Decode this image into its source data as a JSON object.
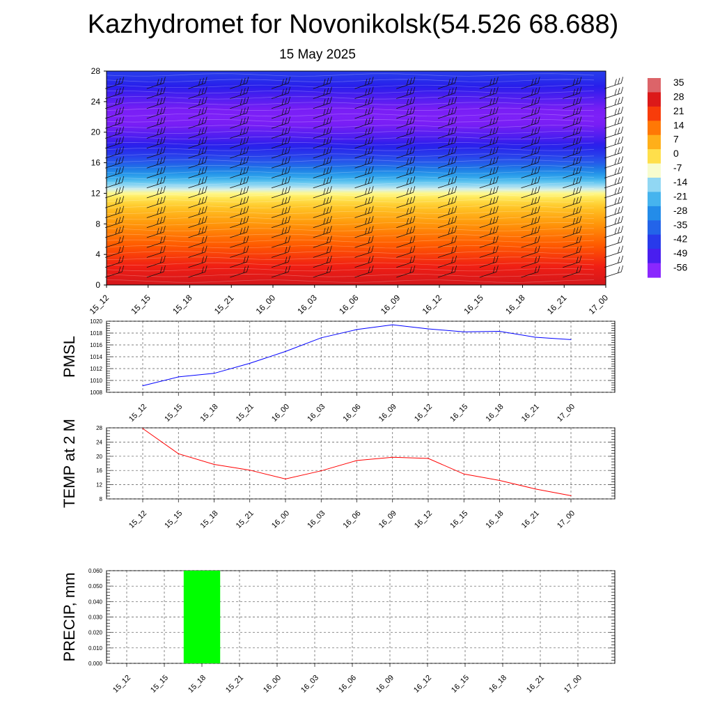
{
  "title": "Kazhydromet for Novonikolsk(54.526 68.688)",
  "subtitle": "15 May 2025",
  "chart_data": [
    {
      "type": "heatmap",
      "x_categories": [
        "15_12",
        "15_15",
        "15_18",
        "15_21",
        "16_00",
        "16_03",
        "16_06",
        "16_09",
        "16_12",
        "16_15",
        "16_18",
        "16_21",
        "17_00"
      ],
      "y_ticks": [
        0,
        4,
        8,
        12,
        16,
        20,
        24,
        28
      ],
      "ylim": [
        0,
        28
      ],
      "colorbar_labels": [
        "35",
        "28",
        "21",
        "14",
        "7",
        "0",
        "-7",
        "-14",
        "-21",
        "-28",
        "-35",
        "-42",
        "-49",
        "-56"
      ],
      "z_profile": {
        "heights": [
          0,
          2,
          4,
          6,
          8,
          10,
          11,
          12,
          13,
          14,
          15,
          16,
          17,
          18,
          19,
          20,
          21,
          22,
          23,
          24,
          25,
          26,
          27,
          28
        ],
        "values": [
          26,
          22,
          17,
          12,
          7,
          1,
          -3,
          -8,
          -17,
          -26,
          -33,
          -40,
          -45,
          -49,
          -52,
          -54,
          -56,
          -57,
          -56,
          -54,
          -52,
          -50,
          -47,
          -45
        ]
      },
      "overlay": "wind barbs"
    },
    {
      "type": "line",
      "ylabel": "PMSL",
      "x_categories": [
        "15_12",
        "15_15",
        "15_18",
        "15_21",
        "16_00",
        "16_03",
        "16_06",
        "16_09",
        "16_12",
        "16_15",
        "16_18",
        "16_21",
        "17_00"
      ],
      "values": [
        1009.1,
        1010.6,
        1011.2,
        1012.9,
        1014.9,
        1017.2,
        1018.6,
        1019.4,
        1018.7,
        1018.2,
        1018.3,
        1017.3,
        1016.9
      ],
      "y_ticks": [
        "1008",
        "1010",
        "1012",
        "1014",
        "1016",
        "1018",
        "1020"
      ],
      "ylim": [
        1008,
        1020
      ],
      "color": "#0000ff",
      "grid": true
    },
    {
      "type": "line",
      "ylabel": "TEMP at 2 M",
      "x_categories": [
        "15_12",
        "15_15",
        "15_18",
        "15_21",
        "16_00",
        "16_03",
        "16_06",
        "16_09",
        "16_12",
        "16_15",
        "16_18",
        "16_21",
        "17_00"
      ],
      "values": [
        27.8,
        20.7,
        17.7,
        16.1,
        13.6,
        15.9,
        18.8,
        19.7,
        19.4,
        15.0,
        13.2,
        10.8,
        8.9
      ],
      "y_ticks": [
        "8",
        "12",
        "16",
        "20",
        "24",
        "28"
      ],
      "ylim": [
        8,
        28
      ],
      "color": "#ff0000",
      "grid": true
    },
    {
      "type": "bar",
      "ylabel": "PRECIP, mm",
      "x_categories": [
        "15_12",
        "15_15",
        "15_18",
        "15_21",
        "16_00",
        "16_03",
        "16_06",
        "16_09",
        "16_12",
        "16_15",
        "16_18",
        "16_21",
        "17_00"
      ],
      "values": [
        0,
        0,
        0.06,
        0,
        0,
        0,
        0,
        0,
        0,
        0,
        0,
        0,
        0
      ],
      "y_ticks": [
        "0.000",
        "0.010",
        "0.020",
        "0.030",
        "0.040",
        "0.050",
        "0.060"
      ],
      "ylim": [
        0,
        0.06
      ],
      "color": "#00ff00",
      "grid": true
    }
  ]
}
